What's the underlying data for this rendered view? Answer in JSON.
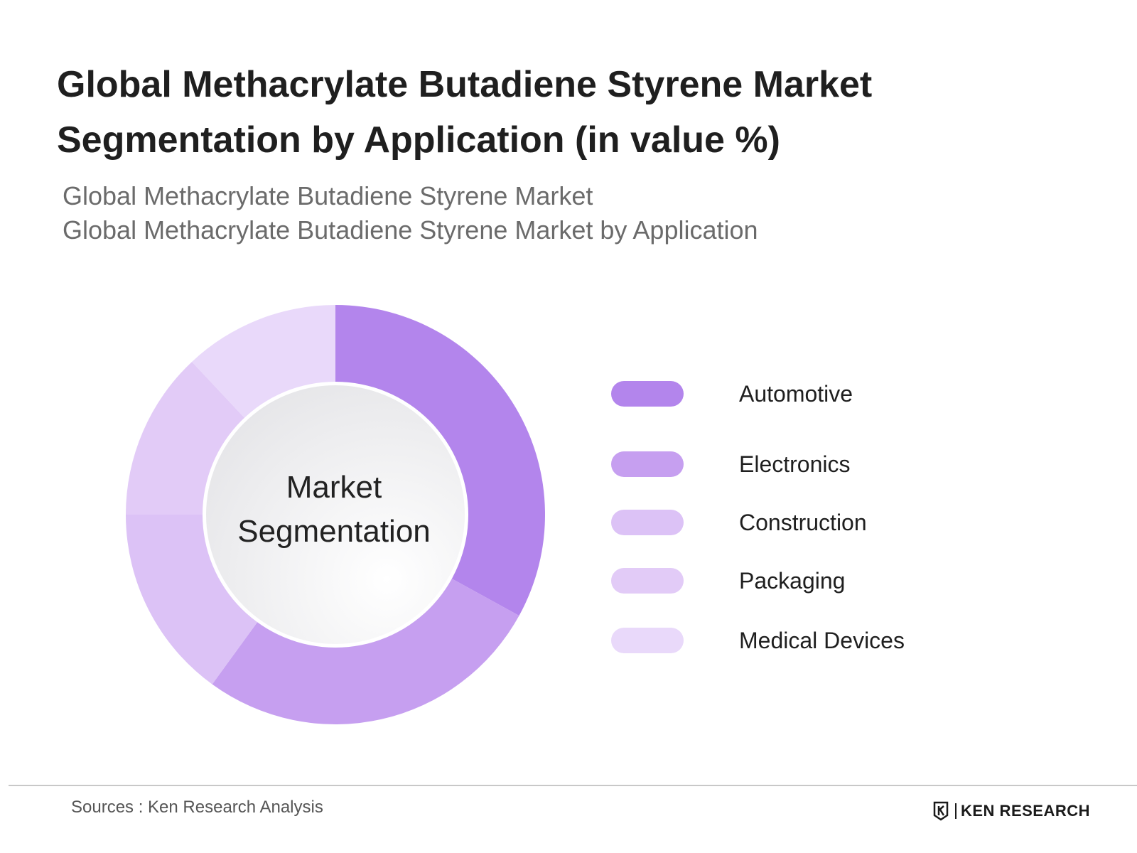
{
  "title": "Global Methacrylate Butadiene Styrene Market Segmentation by Application (in value %)",
  "subtitle_lines": [
    "Global Methacrylate Butadiene Styrene Market",
    "Global Methacrylate Butadiene Styrene Market by Application"
  ],
  "center_label": [
    "Market",
    "Segmentation"
  ],
  "source_text": "Sources : Ken Research Analysis",
  "logo_text": "KEN RESEARCH",
  "chart_data": {
    "type": "pie",
    "donut": true,
    "categories": [
      "Automotive",
      "Electronics",
      "Construction",
      "Packaging",
      "Medical Devices"
    ],
    "values": [
      33,
      27,
      15,
      13,
      12
    ],
    "colors": [
      "#b385ec",
      "#c69ff0",
      "#dcc2f6",
      "#e2cbf7",
      "#e9d9fa"
    ],
    "legend_position": "right"
  }
}
